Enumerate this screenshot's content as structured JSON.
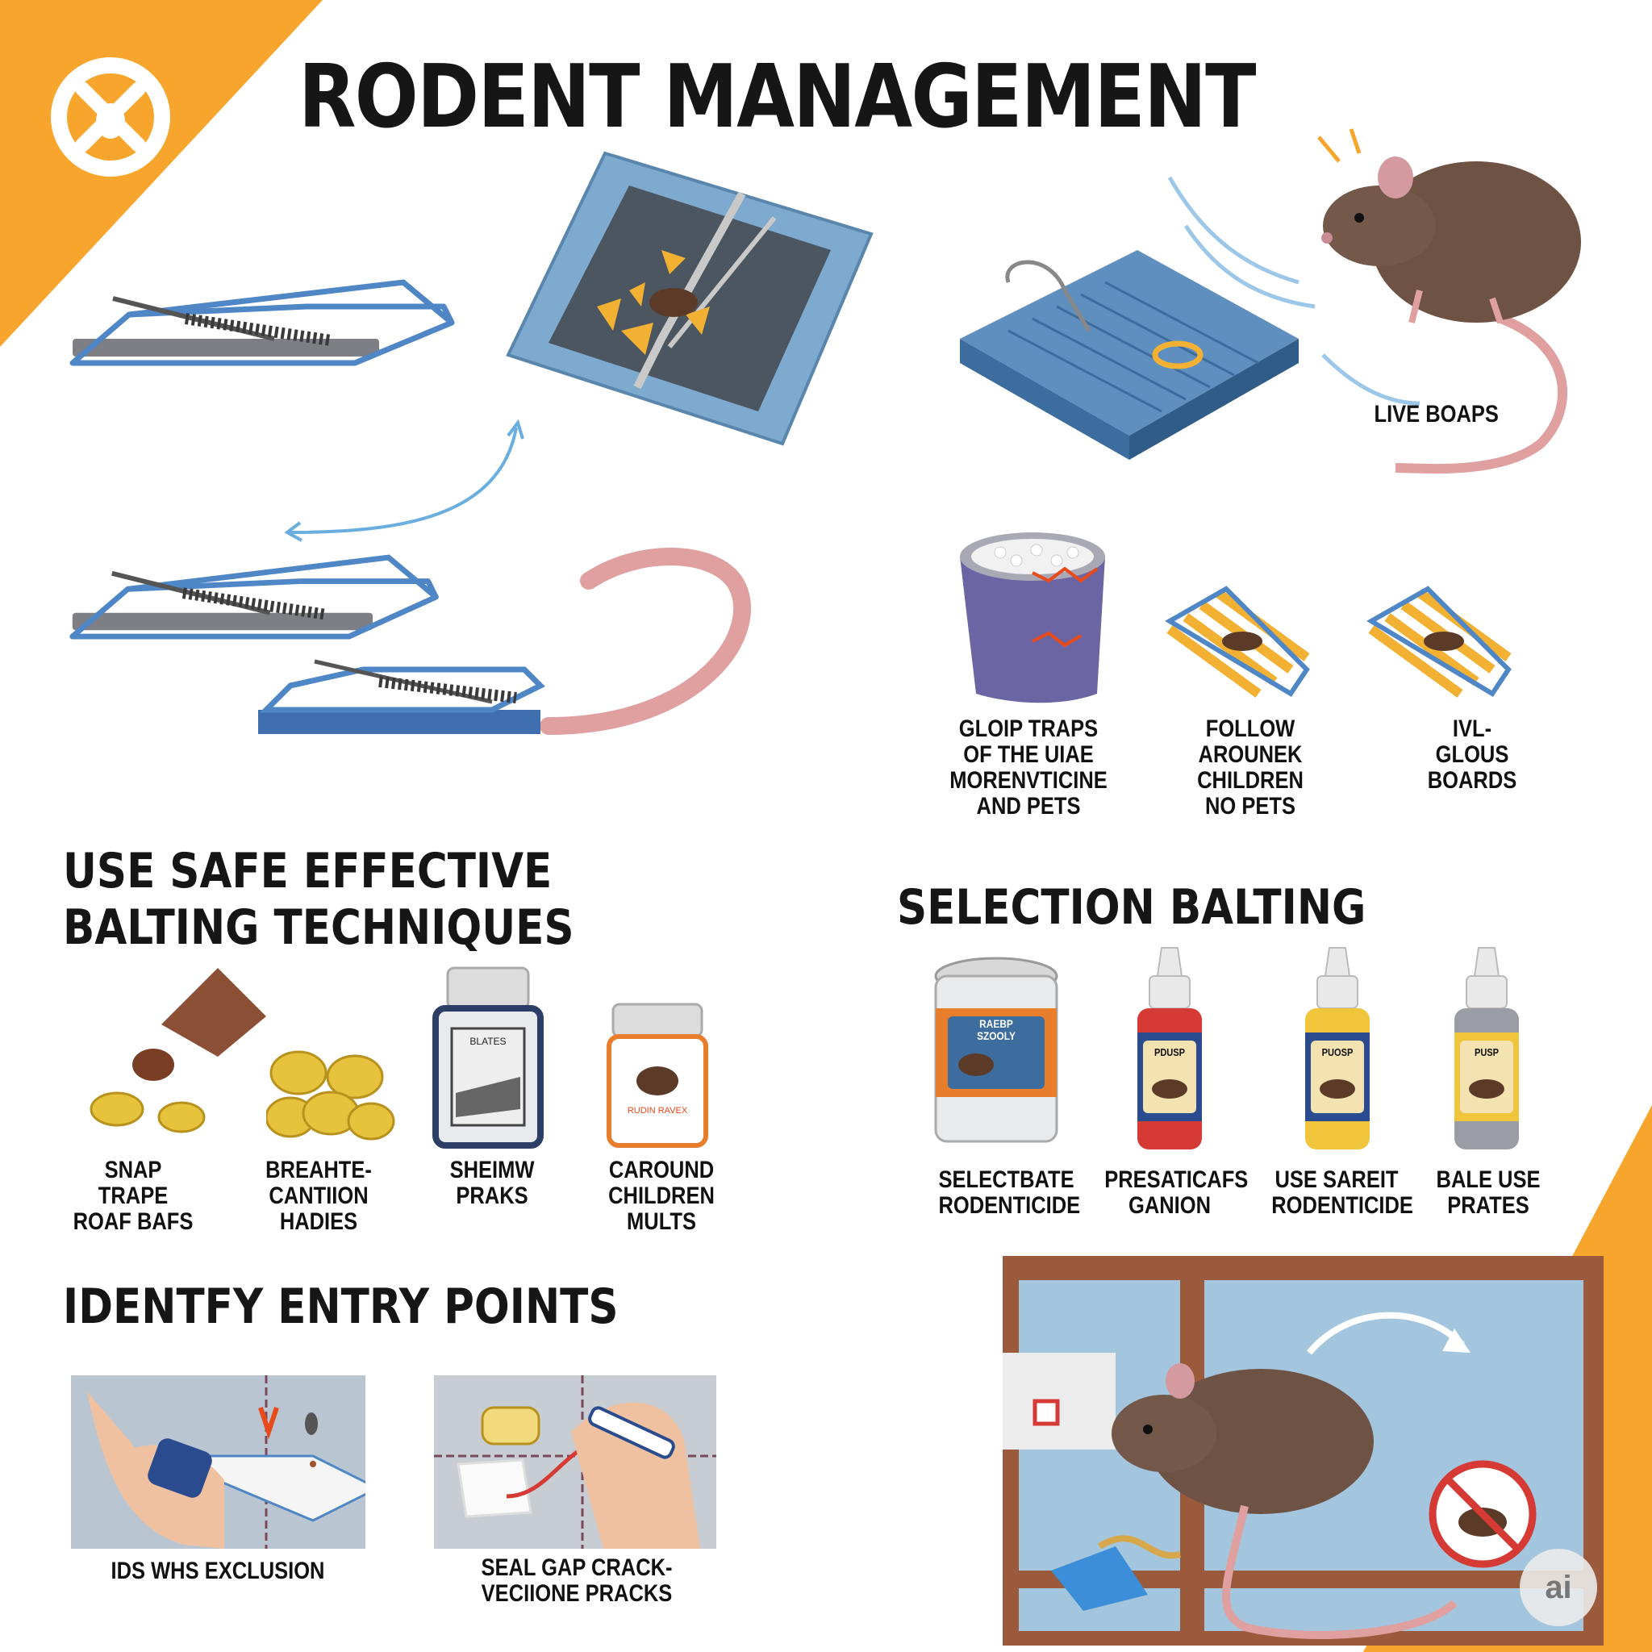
{
  "colors": {
    "accent": "#F7A52C",
    "trap_blue": "#4F86C6",
    "text": "#161616"
  },
  "title": "RODENT MANAGEMENT",
  "logo": {
    "icon": "rodent-cross-logo-icon"
  },
  "traps": {
    "live_label": "LIVE BOAPS",
    "glue_items": [
      {
        "label": "GLOIP TRAPS\nOF THE UIAE\nMORENVTICINE\nAND PETS"
      },
      {
        "label": "FOLLOW\nAROUNEK\nCHILDREN\nNO PETS"
      },
      {
        "label": "IVL-\nGLOUS\nBOARDS"
      }
    ]
  },
  "baiting": {
    "heading": "USE SAFE EFFECTIVE\nBALTING TECHNIQUES",
    "items": [
      {
        "label": "SNAP TRAPE\nROAF BAFS"
      },
      {
        "label": "BREAHTE-\nCANTIION\nHADIES"
      },
      {
        "label": "SHEIMW\nPRAKS"
      },
      {
        "label": "CAROUND\nCHILDREN\nMULTS"
      }
    ],
    "jar_labels": [
      "BLATES",
      "RUDIN RAVEX"
    ]
  },
  "selection": {
    "heading": "SELECTION BALTING",
    "items": [
      {
        "label": "SELECTBATE\nRODENTICIDE",
        "product_text": "RAEBP\nSZOOLY"
      },
      {
        "label": "PRESATICAFS\nGANION",
        "product_text": "PDUSP"
      },
      {
        "label": "USE SAREIT\nRODENTICIDE",
        "product_text": "PUOSP"
      },
      {
        "label": "BALE USE\nPRATES",
        "product_text": "PUSP"
      }
    ]
  },
  "entry": {
    "heading": "IDENTFY ENTRY POINTS",
    "items": [
      {
        "label": "IDS WHS EXCLUSION"
      },
      {
        "label": "SEAL GAP CRACK-\nVECIIONE PRACKS"
      }
    ]
  },
  "badge": "ai"
}
